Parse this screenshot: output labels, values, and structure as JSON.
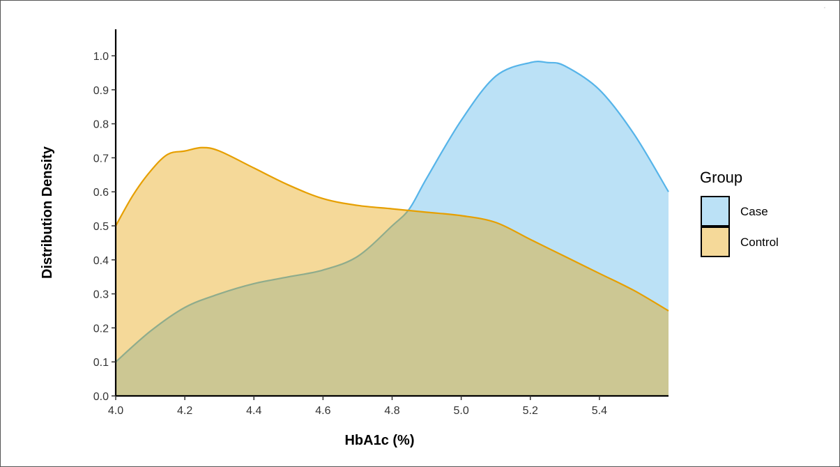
{
  "chart_data": {
    "type": "area",
    "subtype": "density",
    "xlabel": "HbA1c (%)",
    "ylabel": "Distribution Density",
    "xlim": [
      4.0,
      5.6
    ],
    "ylim": [
      0.0,
      1.04
    ],
    "x_ticks": [
      "4.0",
      "4.2",
      "4.4",
      "4.6",
      "4.8",
      "5.0",
      "5.2",
      "5.4"
    ],
    "y_ticks": [
      "0.0",
      "0.1",
      "0.2",
      "0.3",
      "0.4",
      "0.5",
      "0.6",
      "0.7",
      "0.8",
      "0.9",
      "1.0"
    ],
    "grid": false,
    "legend": {
      "title": "Group",
      "placement": "right",
      "entries": [
        "Case",
        "Control"
      ]
    },
    "series": [
      {
        "name": "Case",
        "line_color": "#56B4E9",
        "fill_color": "#56B4E9",
        "fill_opacity": 0.4,
        "x": [
          4.0,
          4.1,
          4.2,
          4.3,
          4.4,
          4.5,
          4.6,
          4.7,
          4.8,
          4.85,
          4.9,
          5.0,
          5.1,
          5.2,
          5.25,
          5.3,
          5.4,
          5.5,
          5.6
        ],
        "y": [
          0.1,
          0.19,
          0.26,
          0.3,
          0.33,
          0.35,
          0.37,
          0.41,
          0.5,
          0.55,
          0.64,
          0.81,
          0.94,
          0.98,
          0.98,
          0.97,
          0.9,
          0.77,
          0.6
        ]
      },
      {
        "name": "Control",
        "line_color": "#E69F00",
        "fill_color": "#E69F00",
        "fill_opacity": 0.4,
        "x": [
          4.0,
          4.05,
          4.1,
          4.15,
          4.2,
          4.25,
          4.3,
          4.4,
          4.5,
          4.6,
          4.7,
          4.8,
          4.9,
          5.0,
          5.1,
          5.2,
          5.3,
          5.4,
          5.5,
          5.6
        ],
        "y": [
          0.5,
          0.59,
          0.66,
          0.71,
          0.72,
          0.73,
          0.72,
          0.67,
          0.62,
          0.58,
          0.56,
          0.55,
          0.54,
          0.53,
          0.51,
          0.46,
          0.41,
          0.36,
          0.31,
          0.25
        ]
      }
    ]
  }
}
